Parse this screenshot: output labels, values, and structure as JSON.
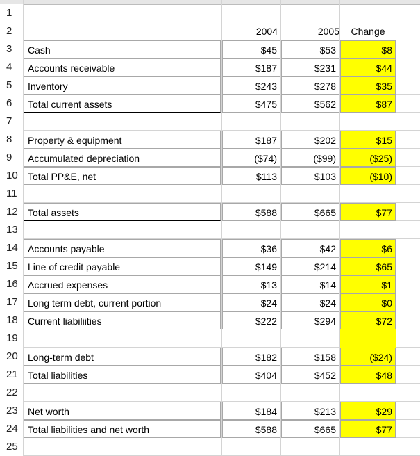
{
  "sheet": {
    "header_row": {
      "b": "2004",
      "c": "2005",
      "d": "Change"
    },
    "rows": [
      {
        "num": "1",
        "a": "",
        "b": "",
        "c": "",
        "d": ""
      },
      {
        "num": "2",
        "a": "",
        "b": "2004",
        "c": "2005",
        "d": "Change"
      },
      {
        "num": "3",
        "a": "Cash",
        "b": "$45",
        "c": "$53",
        "d": "$8"
      },
      {
        "num": "4",
        "a": "Accounts receivable",
        "b": "$187",
        "c": "$231",
        "d": "$44"
      },
      {
        "num": "5",
        "a": "Inventory",
        "b": "$243",
        "c": "$278",
        "d": "$35"
      },
      {
        "num": "6",
        "a": "Total current assets",
        "b": "$475",
        "c": "$562",
        "d": "$87"
      },
      {
        "num": "7",
        "a": "",
        "b": "",
        "c": "",
        "d": ""
      },
      {
        "num": "8",
        "a": "Property & equipment",
        "b": "$187",
        "c": "$202",
        "d": "$15"
      },
      {
        "num": "9",
        "a": "Accumulated depreciation",
        "b": "($74)",
        "c": "($99)",
        "d": "($25)"
      },
      {
        "num": "10",
        "a": "Total PP&E, net",
        "b": "$113",
        "c": "$103",
        "d": "($10)"
      },
      {
        "num": "11",
        "a": "",
        "b": "",
        "c": "",
        "d": ""
      },
      {
        "num": "12",
        "a": "Total assets",
        "b": "$588",
        "c": "$665",
        "d": "$77"
      },
      {
        "num": "13",
        "a": "",
        "b": "",
        "c": "",
        "d": ""
      },
      {
        "num": "14",
        "a": "Accounts payable",
        "b": "$36",
        "c": "$42",
        "d": "$6"
      },
      {
        "num": "15",
        "a": "Line of credit payable",
        "b": "$149",
        "c": "$214",
        "d": "$65"
      },
      {
        "num": "16",
        "a": "Accrued expenses",
        "b": "$13",
        "c": "$14",
        "d": "$1"
      },
      {
        "num": "17",
        "a": "Long term debt, current portion",
        "b": "$24",
        "c": "$24",
        "d": "$0"
      },
      {
        "num": "18",
        "a": "Current liabiliities",
        "b": "$222",
        "c": "$294",
        "d": "$72"
      },
      {
        "num": "19",
        "a": "",
        "b": "",
        "c": "",
        "d": ""
      },
      {
        "num": "20",
        "a": "Long-term debt",
        "b": "$182",
        "c": "$158",
        "d": "($24)"
      },
      {
        "num": "21",
        "a": "Total liabilities",
        "b": "$404",
        "c": "$452",
        "d": "$48"
      },
      {
        "num": "22",
        "a": "",
        "b": "",
        "c": "",
        "d": ""
      },
      {
        "num": "23",
        "a": "Net worth",
        "b": "$184",
        "c": "$213",
        "d": "$29"
      },
      {
        "num": "24",
        "a": "Total liabilities and net worth",
        "b": "$588",
        "c": "$665",
        "d": "$77"
      },
      {
        "num": "25",
        "a": "",
        "b": "",
        "c": "",
        "d": ""
      }
    ],
    "colors": {
      "highlight": "#ffff00",
      "grid": "#d4d4d4",
      "header_bg": "#e6e6e6"
    }
  }
}
